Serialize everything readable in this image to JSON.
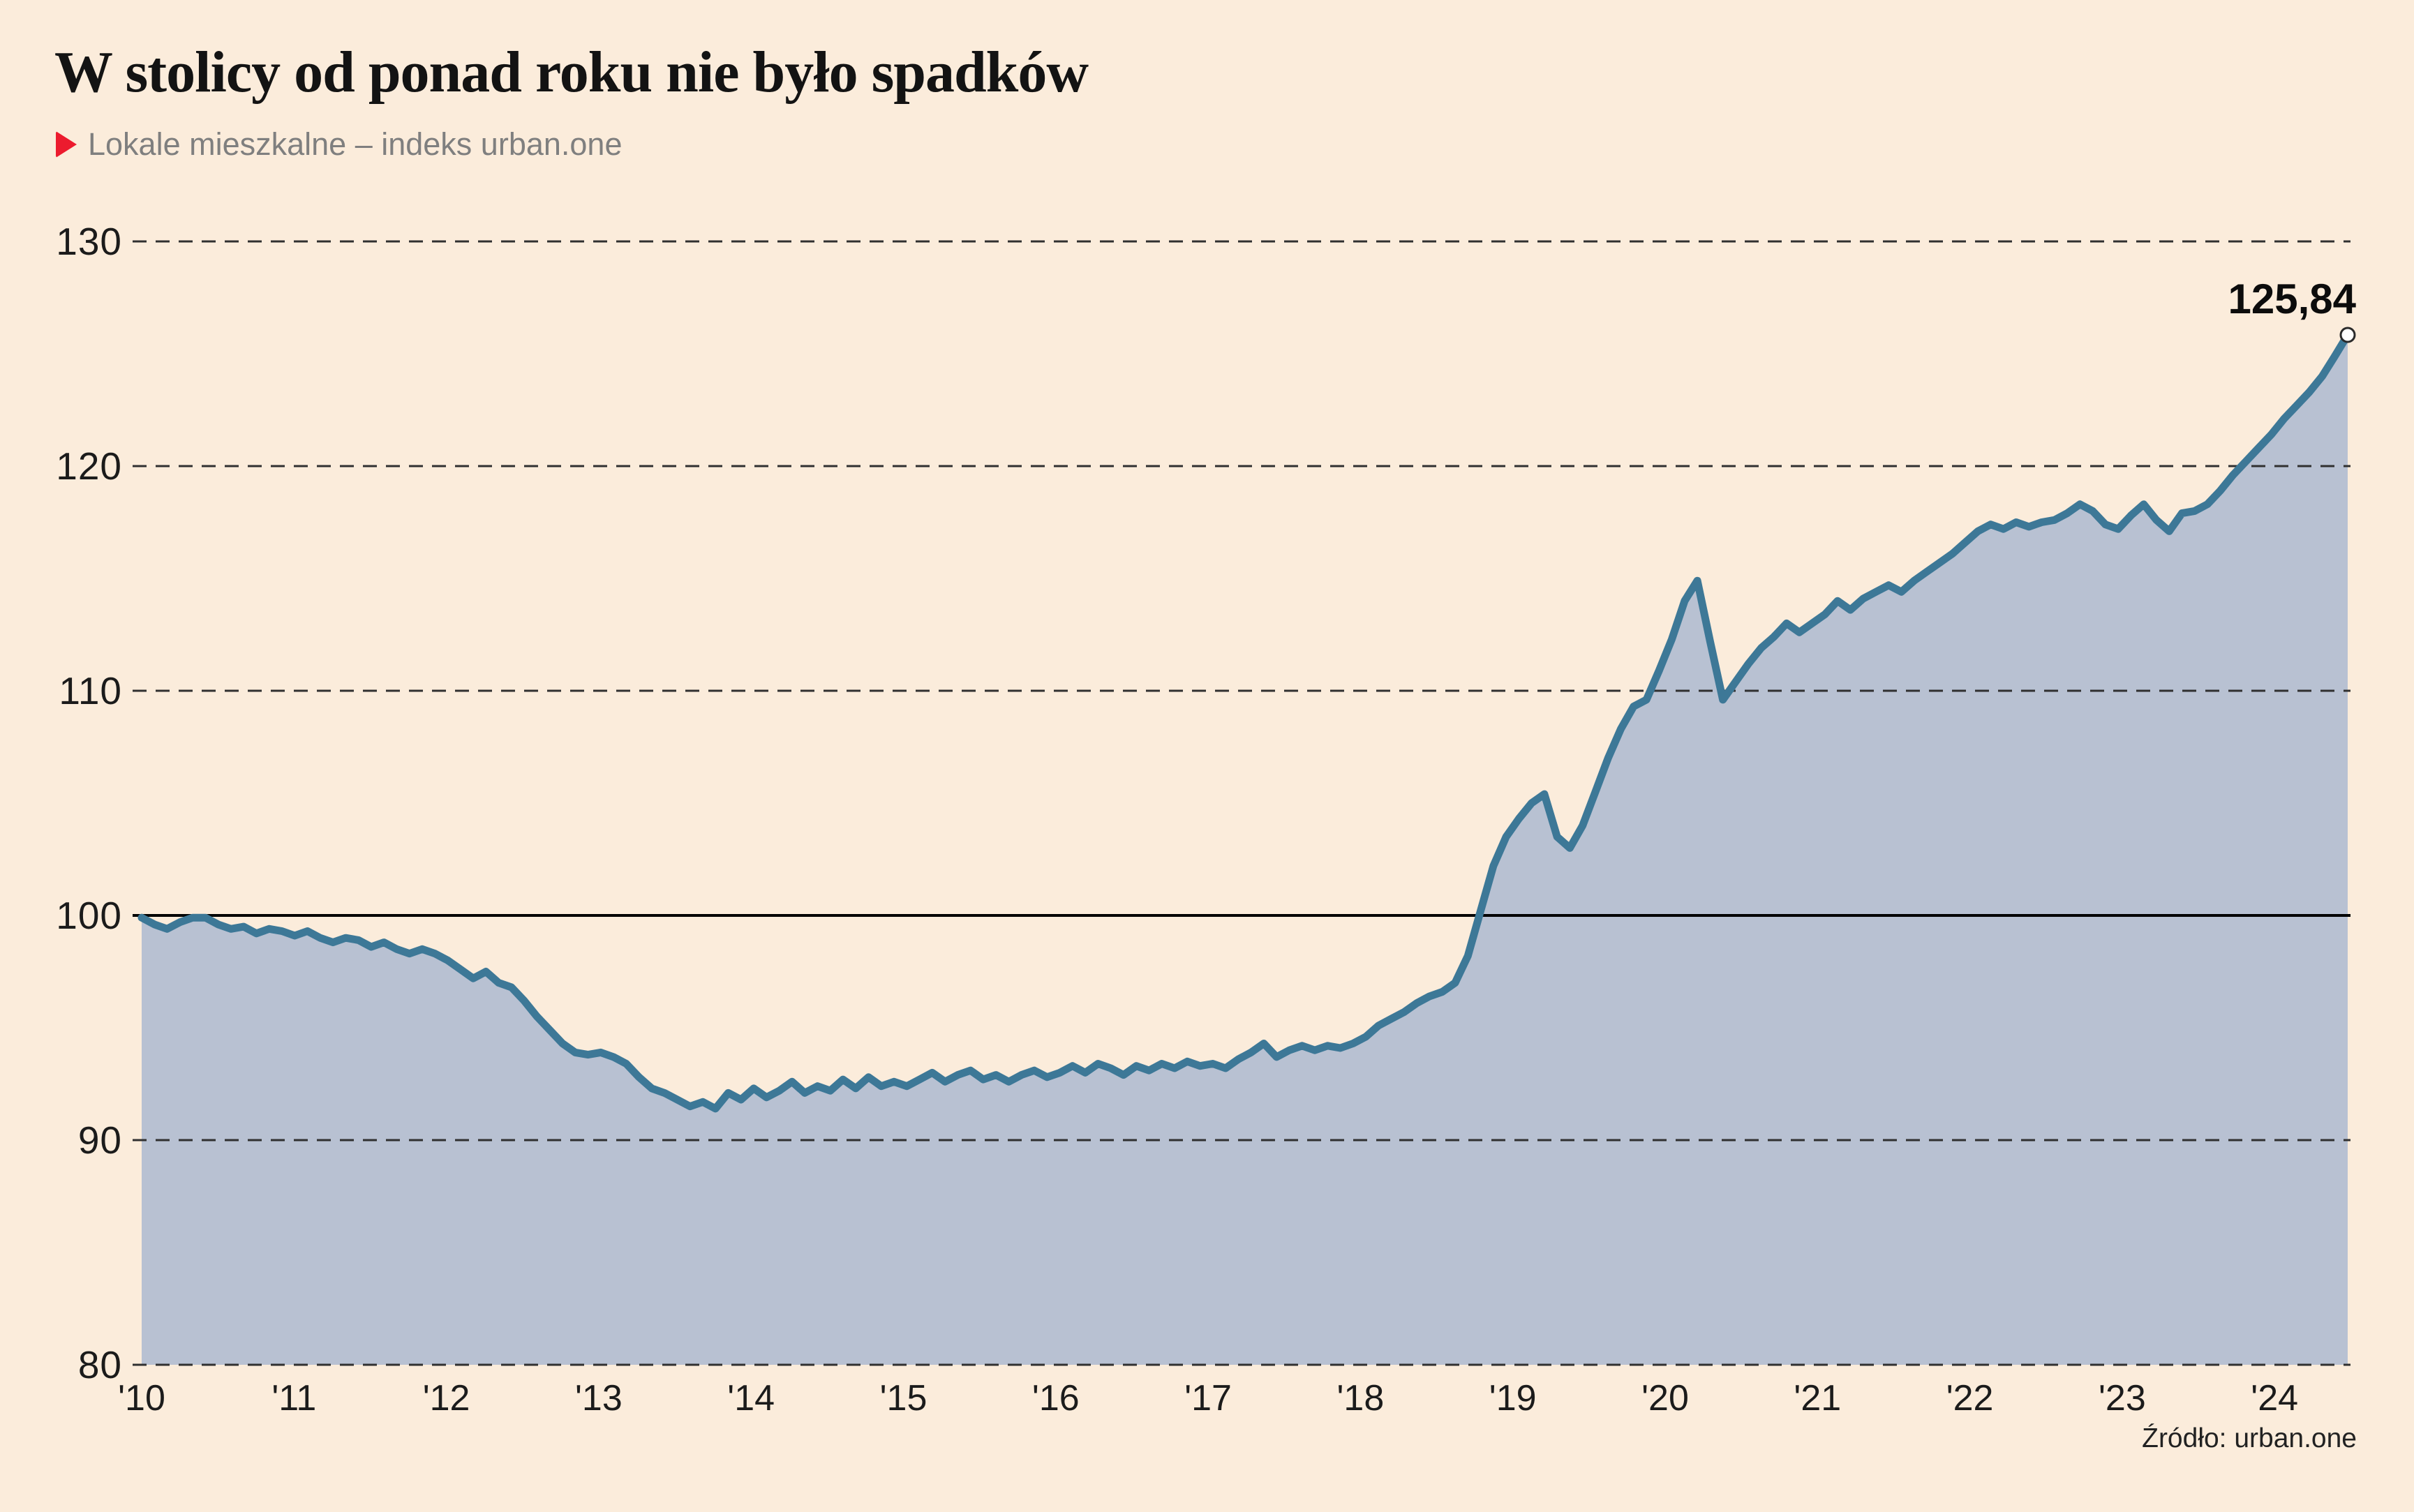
{
  "title": "W stolicy od ponad roku nie było spadków",
  "subtitle": "Lokale mieszkalne – indeks urban.one",
  "source": "Źródło: urban.one",
  "end_label": "125,84",
  "colors": {
    "background": "#fbecdb",
    "area_fill": "#b8c1d2",
    "line": "#3d7897",
    "grid_dashed": "#303030",
    "baseline_100": "#000000",
    "title_text": "#131313",
    "subtitle_text": "#7f7f7f",
    "accent_red": "#ec1b2e",
    "axis_text": "#1b1b1b",
    "end_dot_fill": "#ffffff",
    "end_dot_stroke": "#2a2a2a"
  },
  "chart_data": {
    "type": "area",
    "title": "W stolicy od ponad roku nie było spadków",
    "subtitle": "Lokale mieszkalne – indeks urban.one",
    "series_name": "indeks urban.one – lokale mieszkalne",
    "frequency": "monthly",
    "x_start": {
      "year": 2010,
      "month": 1
    },
    "x_end": {
      "year": 2024,
      "month": 6
    },
    "x_tick_labels": [
      "'10",
      "'11",
      "'12",
      "'13",
      "'14",
      "'15",
      "'16",
      "'17",
      "'18",
      "'19",
      "'20",
      "'21",
      "'22",
      "'23",
      "'24"
    ],
    "ylim": [
      80,
      130
    ],
    "yticks": [
      130,
      120,
      110,
      100,
      90,
      80
    ],
    "baseline": 100,
    "grid": "dashed-horizontal, solid line at 100",
    "legend_position": "none",
    "last_value_label": "125,84",
    "last_value": 125.84,
    "values": [
      99.9,
      99.6,
      99.4,
      99.7,
      99.9,
      99.9,
      99.6,
      99.4,
      99.5,
      99.2,
      99.4,
      99.3,
      99.1,
      99.3,
      99.0,
      98.8,
      99.0,
      98.9,
      98.6,
      98.8,
      98.5,
      98.3,
      98.5,
      98.3,
      98.0,
      97.6,
      97.2,
      97.5,
      97.0,
      96.8,
      96.2,
      95.5,
      94.9,
      94.3,
      93.9,
      93.8,
      93.9,
      93.7,
      93.4,
      92.8,
      92.3,
      92.1,
      91.8,
      91.5,
      91.7,
      91.4,
      92.1,
      91.8,
      92.3,
      91.9,
      92.2,
      92.6,
      92.1,
      92.4,
      92.2,
      92.7,
      92.3,
      92.8,
      92.4,
      92.6,
      92.4,
      92.7,
      93.0,
      92.6,
      92.9,
      93.1,
      92.7,
      92.9,
      92.6,
      92.9,
      93.1,
      92.8,
      93.0,
      93.3,
      93.0,
      93.4,
      93.2,
      92.9,
      93.3,
      93.1,
      93.4,
      93.2,
      93.5,
      93.3,
      93.4,
      93.2,
      93.6,
      93.9,
      94.3,
      93.7,
      94.0,
      94.2,
      94.0,
      94.2,
      94.1,
      94.3,
      94.6,
      95.1,
      95.4,
      95.7,
      96.1,
      96.4,
      96.6,
      97.0,
      98.2,
      100.2,
      102.2,
      103.5,
      104.3,
      105.0,
      105.4,
      103.5,
      103.0,
      104.0,
      105.5,
      107.0,
      108.3,
      109.3,
      109.6,
      110.9,
      112.3,
      114.0,
      114.9,
      112.2,
      109.6,
      110.4,
      111.2,
      111.9,
      112.4,
      113.0,
      112.6,
      113.0,
      113.4,
      114.0,
      113.6,
      114.1,
      114.4,
      114.7,
      114.4,
      114.9,
      115.3,
      115.7,
      116.1,
      116.6,
      117.1,
      117.4,
      117.2,
      117.5,
      117.3,
      117.5,
      117.6,
      117.9,
      118.3,
      118.0,
      117.4,
      117.2,
      117.8,
      118.3,
      117.6,
      117.1,
      117.9,
      118.0,
      118.3,
      118.9,
      119.6,
      120.2,
      120.8,
      121.4,
      122.1,
      122.7,
      123.3,
      124.0,
      124.9,
      125.84
    ]
  }
}
